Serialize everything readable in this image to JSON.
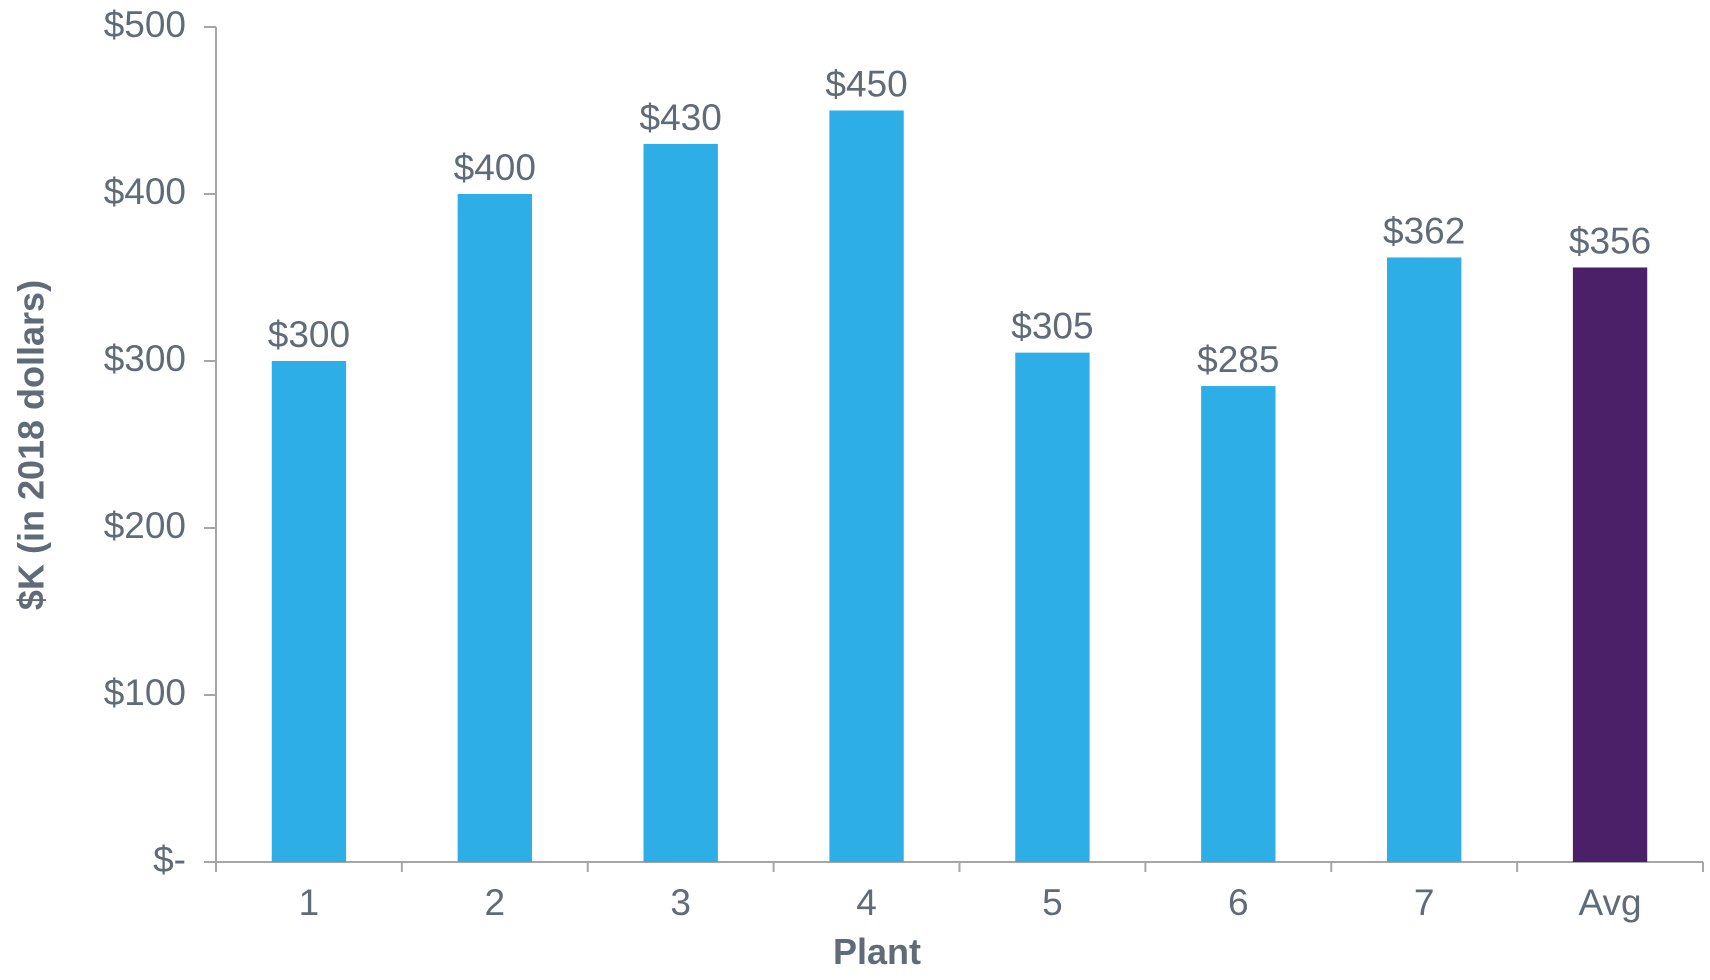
{
  "chart_data": {
    "type": "bar",
    "x_label": "Plant",
    "y_label": "$K (in 2018 dollars)",
    "categories": [
      "1",
      "2",
      "3",
      "4",
      "5",
      "6",
      "7",
      "Avg"
    ],
    "values": [
      300,
      400,
      430,
      450,
      305,
      285,
      362,
      356
    ],
    "value_labels": [
      "$300",
      "$400",
      "$430",
      "$450",
      "$305",
      "$285",
      "$362",
      "$356"
    ],
    "colors": [
      "#2eaee6",
      "#2eaee6",
      "#2eaee6",
      "#2eaee6",
      "#2eaee6",
      "#2eaee6",
      "#2eaee6",
      "#4b2069"
    ],
    "ylim": [
      0,
      500
    ],
    "yticks": [
      {
        "value": 0,
        "label": "$-"
      },
      {
        "value": 100,
        "label": "$100"
      },
      {
        "value": 200,
        "label": "$200"
      },
      {
        "value": 300,
        "label": "$300"
      },
      {
        "value": 400,
        "label": "$400"
      },
      {
        "value": 500,
        "label": "$500"
      }
    ],
    "grid": false
  }
}
